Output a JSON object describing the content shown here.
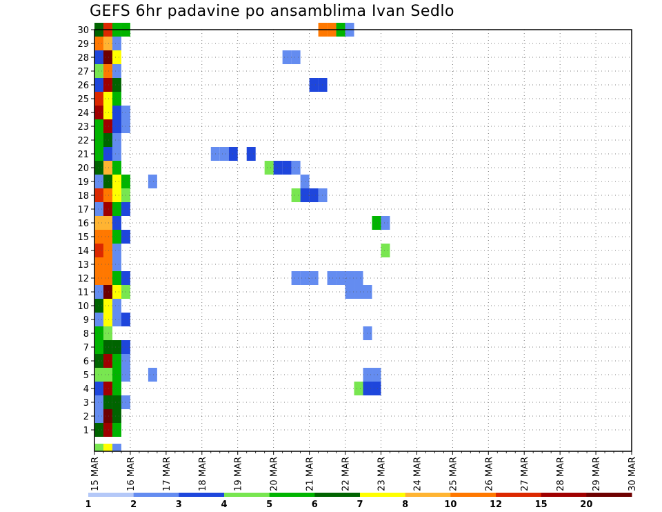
{
  "chart_data": {
    "type": "heatmap",
    "title": "GEFS 6hr padavine po ansamblima Ivan Sedlo",
    "xlabel": "",
    "ylabel": "",
    "x_tick_labels": [
      "15 MAR",
      "16 MAR",
      "17 MAR",
      "18 MAR",
      "19 MAR",
      "20 MAR",
      "21 MAR",
      "22 MAR",
      "23 MAR",
      "24 MAR",
      "25 MAR",
      "26 MAR",
      "27 MAR",
      "28 MAR",
      "29 MAR",
      "30 MAR"
    ],
    "y_tick_labels": [
      "1",
      "2",
      "3",
      "4",
      "5",
      "6",
      "7",
      "8",
      "9",
      "10",
      "11",
      "12",
      "13",
      "14",
      "15",
      "16",
      "17",
      "18",
      "19",
      "20",
      "21",
      "22",
      "23",
      "24",
      "25",
      "26",
      "27",
      "28",
      "29",
      "30"
    ],
    "x_range": [
      0,
      60
    ],
    "y_range": [
      0,
      30
    ],
    "grid": true,
    "time_step_hours": 6,
    "colorbar": {
      "colors": [
        "#b4c8f8",
        "#648cf0",
        "#1e46dc",
        "#78e650",
        "#00b400",
        "#006400",
        "#ffff00",
        "#ffb432",
        "#ff7800",
        "#dc2800",
        "#a00000",
        "#6e0000"
      ],
      "labels": [
        "1",
        "2",
        "3",
        "4",
        "5",
        "6",
        "7",
        "8",
        "10",
        "12",
        "15",
        "20"
      ]
    },
    "cells": [
      [
        0,
        0,
        3
      ],
      [
        1,
        0,
        6
      ],
      [
        2,
        0,
        1
      ],
      [
        0,
        1,
        5
      ],
      [
        1,
        1,
        10
      ],
      [
        2,
        1,
        4
      ],
      [
        0,
        2,
        1
      ],
      [
        1,
        2,
        11
      ],
      [
        2,
        2,
        5
      ],
      [
        0,
        3,
        1
      ],
      [
        1,
        3,
        5
      ],
      [
        2,
        3,
        5
      ],
      [
        3,
        3,
        1
      ],
      [
        0,
        4,
        2
      ],
      [
        1,
        4,
        10
      ],
      [
        2,
        4,
        4
      ],
      [
        0,
        5,
        3
      ],
      [
        1,
        5,
        3
      ],
      [
        2,
        5,
        4
      ],
      [
        3,
        5,
        1
      ],
      [
        6,
        5,
        1
      ],
      [
        0,
        6,
        5
      ],
      [
        1,
        6,
        10
      ],
      [
        2,
        6,
        4
      ],
      [
        3,
        6,
        1
      ],
      [
        0,
        7,
        4
      ],
      [
        1,
        7,
        5
      ],
      [
        2,
        7,
        5
      ],
      [
        3,
        7,
        2
      ],
      [
        0,
        8,
        4
      ],
      [
        1,
        8,
        3
      ],
      [
        0,
        9,
        1
      ],
      [
        1,
        9,
        6
      ],
      [
        2,
        9,
        1
      ],
      [
        3,
        9,
        2
      ],
      [
        0,
        10,
        5
      ],
      [
        1,
        10,
        6
      ],
      [
        2,
        10,
        1
      ],
      [
        0,
        11,
        1
      ],
      [
        1,
        11,
        11
      ],
      [
        2,
        11,
        6
      ],
      [
        3,
        11,
        3
      ],
      [
        0,
        12,
        8
      ],
      [
        1,
        12,
        8
      ],
      [
        2,
        12,
        4
      ],
      [
        3,
        12,
        2
      ],
      [
        0,
        13,
        8
      ],
      [
        1,
        13,
        8
      ],
      [
        2,
        13,
        1
      ],
      [
        0,
        14,
        9
      ],
      [
        1,
        14,
        8
      ],
      [
        2,
        14,
        1
      ],
      [
        0,
        15,
        8
      ],
      [
        1,
        15,
        8
      ],
      [
        2,
        15,
        4
      ],
      [
        3,
        15,
        2
      ],
      [
        0,
        16,
        7
      ],
      [
        1,
        16,
        7
      ],
      [
        2,
        16,
        2
      ],
      [
        0,
        17,
        1
      ],
      [
        1,
        17,
        10
      ],
      [
        2,
        17,
        4
      ],
      [
        3,
        17,
        2
      ],
      [
        0,
        18,
        9
      ],
      [
        1,
        18,
        8
      ],
      [
        2,
        18,
        6
      ],
      [
        3,
        18,
        3
      ],
      [
        0,
        19,
        1
      ],
      [
        1,
        19,
        5
      ],
      [
        2,
        19,
        6
      ],
      [
        3,
        19,
        4
      ],
      [
        6,
        19,
        1
      ],
      [
        0,
        20,
        5
      ],
      [
        1,
        20,
        7
      ],
      [
        2,
        20,
        4
      ],
      [
        0,
        21,
        4
      ],
      [
        1,
        21,
        2
      ],
      [
        2,
        21,
        1
      ],
      [
        0,
        22,
        4
      ],
      [
        1,
        22,
        5
      ],
      [
        2,
        22,
        1
      ],
      [
        0,
        23,
        4
      ],
      [
        1,
        23,
        10
      ],
      [
        2,
        23,
        2
      ],
      [
        3,
        23,
        1
      ],
      [
        0,
        24,
        10
      ],
      [
        1,
        24,
        6
      ],
      [
        2,
        24,
        2
      ],
      [
        3,
        24,
        1
      ],
      [
        0,
        25,
        9
      ],
      [
        1,
        25,
        6
      ],
      [
        2,
        25,
        4
      ],
      [
        0,
        26,
        2
      ],
      [
        1,
        26,
        10
      ],
      [
        2,
        26,
        5
      ],
      [
        0,
        27,
        3
      ],
      [
        1,
        27,
        8
      ],
      [
        2,
        27,
        1
      ],
      [
        0,
        28,
        2
      ],
      [
        1,
        28,
        11
      ],
      [
        2,
        28,
        6
      ],
      [
        0,
        29,
        8
      ],
      [
        1,
        29,
        7
      ],
      [
        2,
        29,
        1
      ],
      [
        0,
        30,
        5
      ],
      [
        1,
        30,
        9
      ],
      [
        2,
        30,
        4
      ],
      [
        3,
        30,
        4
      ],
      [
        29,
        4,
        3
      ],
      [
        30,
        4,
        2
      ],
      [
        31,
        4,
        2
      ],
      [
        30,
        5,
        1
      ],
      [
        31,
        5,
        1
      ],
      [
        30,
        8,
        1
      ],
      [
        28,
        11,
        1
      ],
      [
        29,
        11,
        1
      ],
      [
        30,
        11,
        1
      ],
      [
        32,
        14,
        3
      ],
      [
        31,
        16,
        4
      ],
      [
        32,
        16,
        1
      ],
      [
        22,
        18,
        3
      ],
      [
        23,
        18,
        2
      ],
      [
        24,
        18,
        2
      ],
      [
        25,
        18,
        1
      ],
      [
        23,
        19,
        1
      ],
      [
        19,
        20,
        3
      ],
      [
        20,
        20,
        2
      ],
      [
        21,
        20,
        2
      ],
      [
        22,
        20,
        1
      ],
      [
        13,
        21,
        1
      ],
      [
        14,
        21,
        1
      ],
      [
        15,
        21,
        2
      ],
      [
        17,
        21,
        2
      ],
      [
        22,
        12,
        1
      ],
      [
        23,
        12,
        1
      ],
      [
        24,
        12,
        1
      ],
      [
        26,
        12,
        1
      ],
      [
        27,
        12,
        1
      ],
      [
        28,
        12,
        1
      ],
      [
        29,
        12,
        1
      ],
      [
        25,
        30,
        8
      ],
      [
        26,
        30,
        8
      ],
      [
        27,
        30,
        4
      ],
      [
        28,
        30,
        1
      ],
      [
        21,
        28,
        1
      ],
      [
        22,
        28,
        1
      ],
      [
        24,
        26,
        2
      ],
      [
        25,
        26,
        2
      ]
    ]
  }
}
